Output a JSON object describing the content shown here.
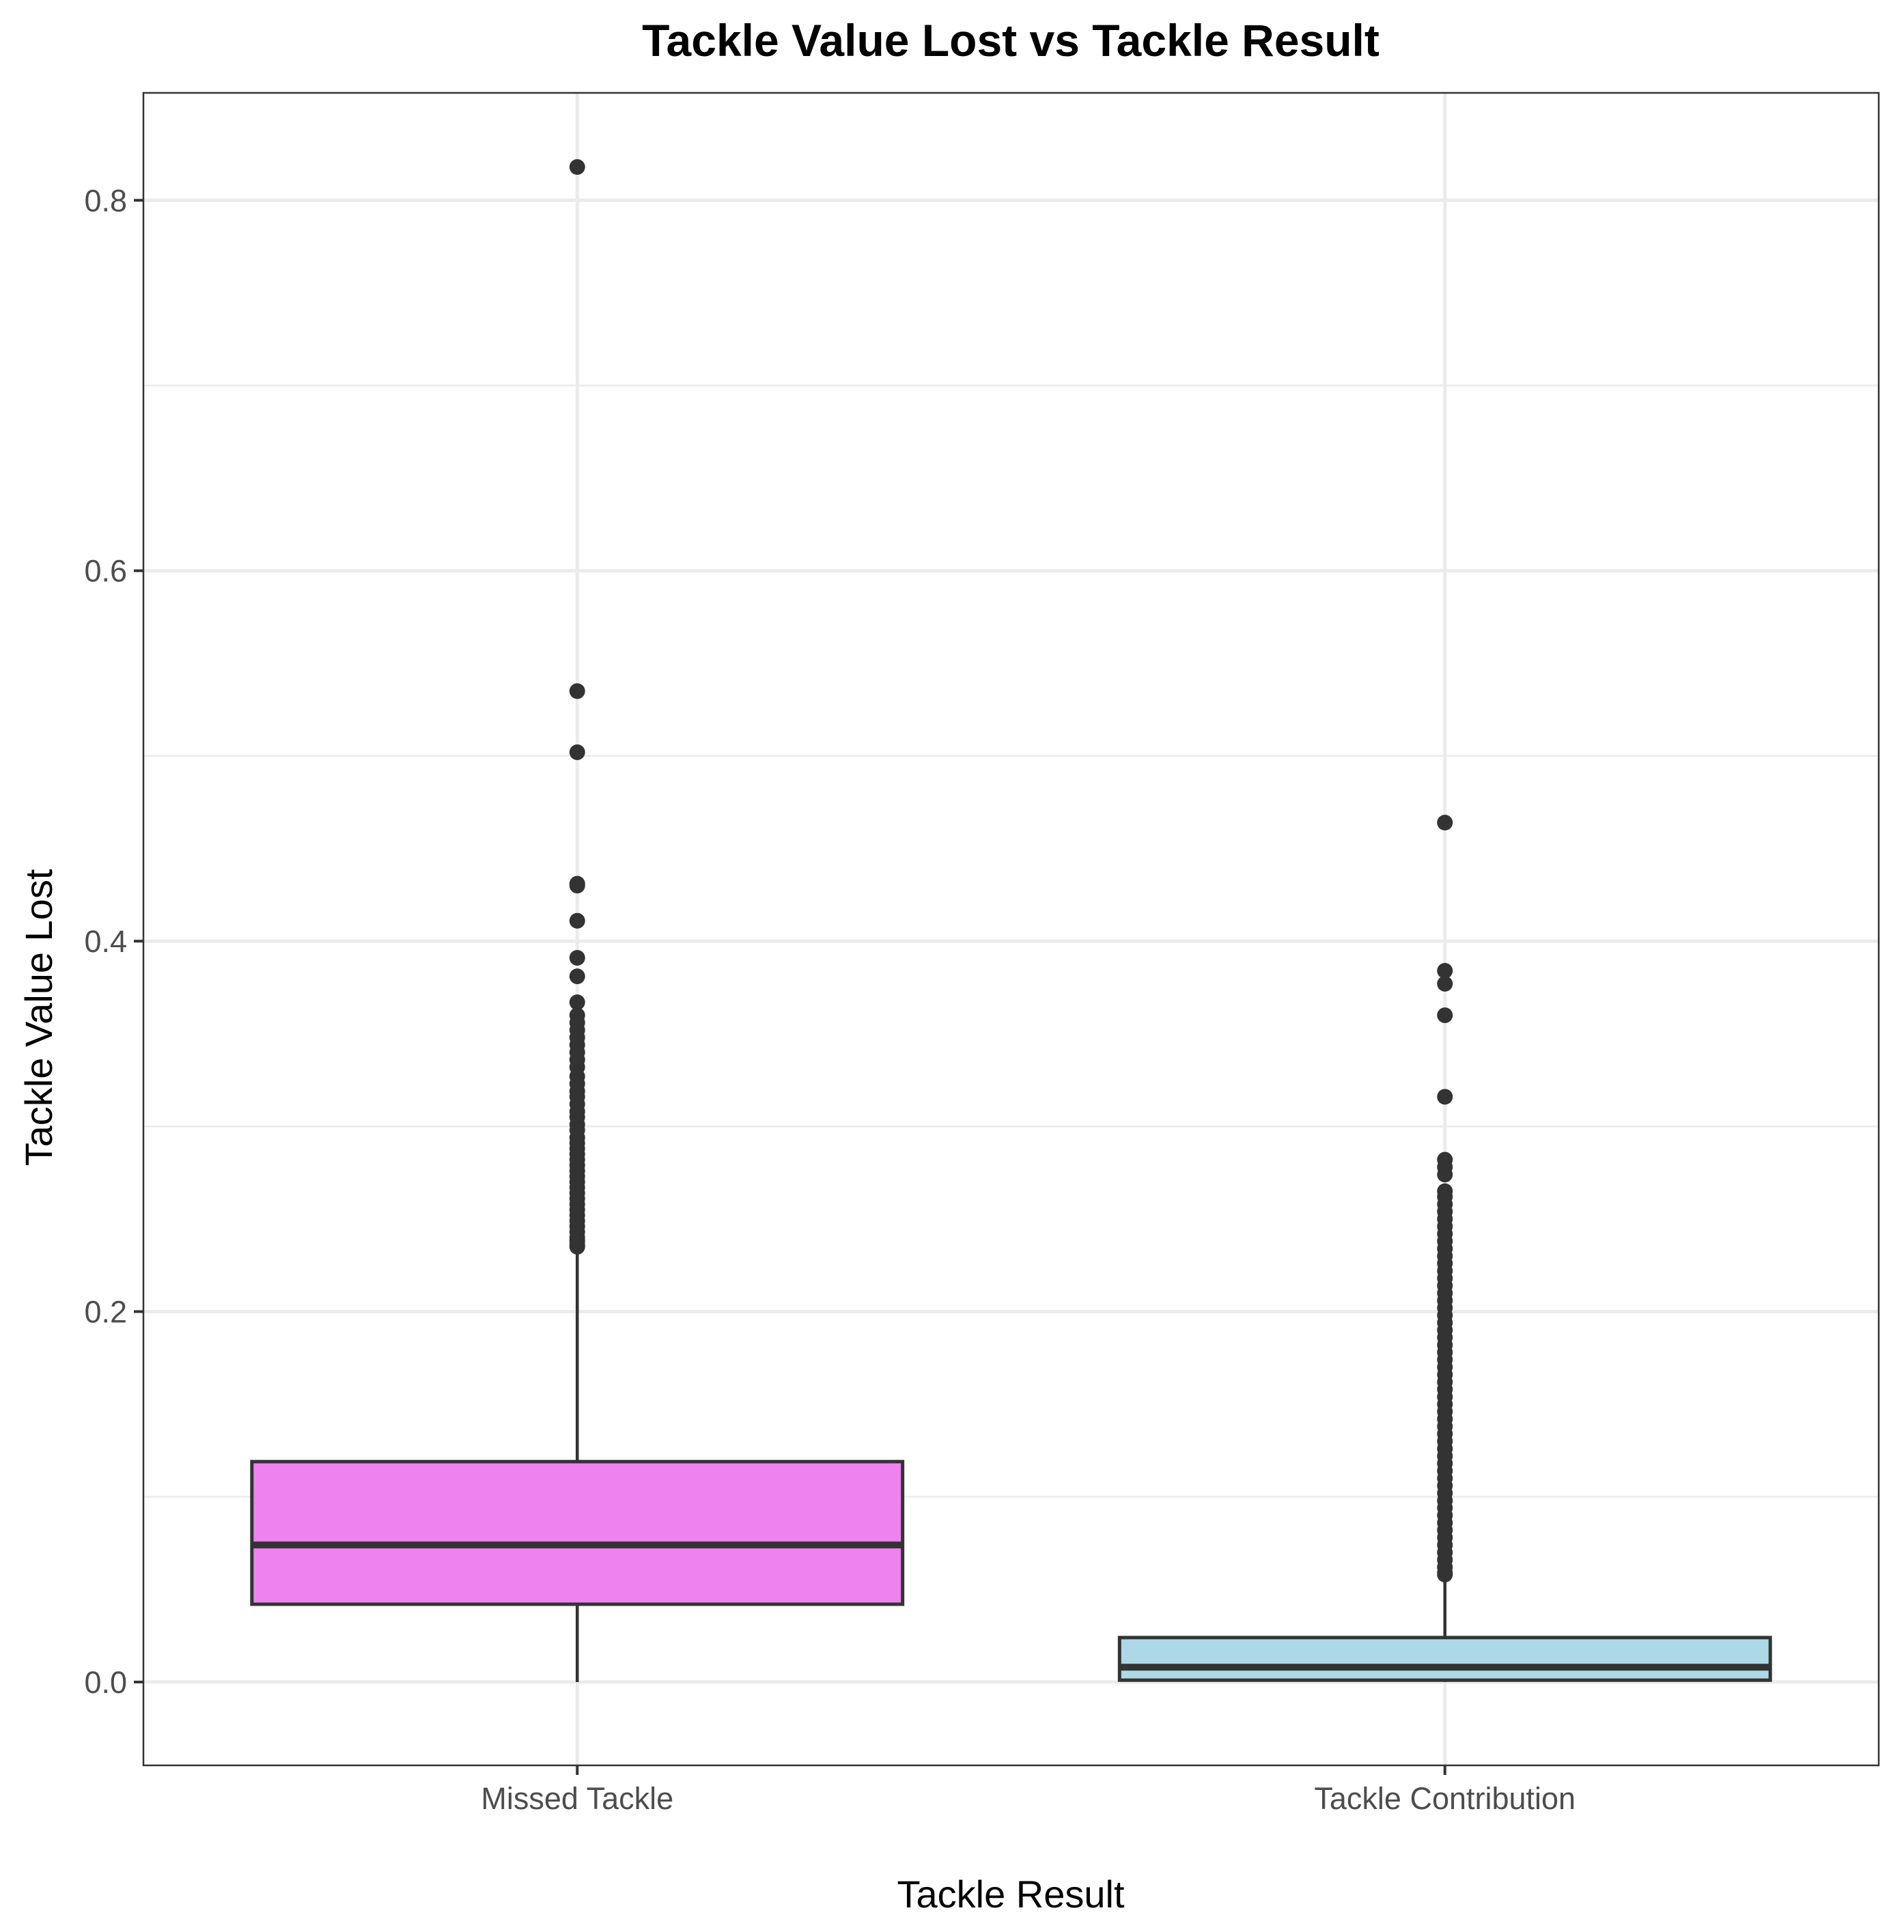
{
  "chart_data": {
    "type": "box",
    "title": "Tackle Value Lost vs Tackle Result",
    "xlabel": "Tackle Result",
    "ylabel": "Tackle Value Lost",
    "categories": [
      "Missed Tackle",
      "Tackle Contribution"
    ],
    "ylim": [
      -0.045,
      0.858
    ],
    "y_ticks": [
      0.0,
      0.2,
      0.4,
      0.6,
      0.8
    ],
    "y_tick_labels": [
      "0.0",
      "0.2",
      "0.4",
      "0.6",
      "0.8"
    ],
    "grid": true,
    "theme": "bw",
    "colors": {
      "box_outline": "#333333",
      "outlier": "#333333",
      "grid": "#ebebeb",
      "panel_border": "#333333"
    },
    "boxes": [
      {
        "category": "Missed Tackle",
        "fill": "#ee82ee",
        "whisker_low": 0.0,
        "q1": 0.042,
        "median": 0.074,
        "q3": 0.119,
        "whisker_high": 0.233,
        "outliers": [
          0.818,
          0.535,
          0.502,
          0.431,
          0.43,
          0.411,
          0.391,
          0.381,
          0.367,
          0.36,
          0.356,
          0.352,
          0.348,
          0.344,
          0.34,
          0.336,
          0.332,
          0.327,
          0.323,
          0.319,
          0.316,
          0.312,
          0.308,
          0.305,
          0.301,
          0.298,
          0.294,
          0.291,
          0.288,
          0.285,
          0.282,
          0.279,
          0.276,
          0.273,
          0.27,
          0.267,
          0.264,
          0.261,
          0.258,
          0.255,
          0.252,
          0.249,
          0.246,
          0.243,
          0.24,
          0.238,
          0.236,
          0.235
        ]
      },
      {
        "category": "Tackle Contribution",
        "fill": "#add8e6",
        "whisker_low": 0.0,
        "q1": 0.001,
        "median": 0.008,
        "q3": 0.024,
        "whisker_high": 0.057,
        "outliers": [
          0.464,
          0.384,
          0.377,
          0.36,
          0.316,
          0.282,
          0.278,
          0.274,
          0.265,
          0.262,
          0.258,
          0.254,
          0.25,
          0.246,
          0.242,
          0.238,
          0.234,
          0.23,
          0.226,
          0.222,
          0.218,
          0.214,
          0.21,
          0.206,
          0.202,
          0.198,
          0.194,
          0.19,
          0.186,
          0.182,
          0.178,
          0.174,
          0.17,
          0.166,
          0.162,
          0.158,
          0.154,
          0.15,
          0.146,
          0.142,
          0.138,
          0.134,
          0.13,
          0.126,
          0.122,
          0.118,
          0.114,
          0.11,
          0.106,
          0.102,
          0.098,
          0.094,
          0.09,
          0.086,
          0.082,
          0.078,
          0.074,
          0.07,
          0.066,
          0.062,
          0.059,
          0.058
        ]
      }
    ]
  }
}
